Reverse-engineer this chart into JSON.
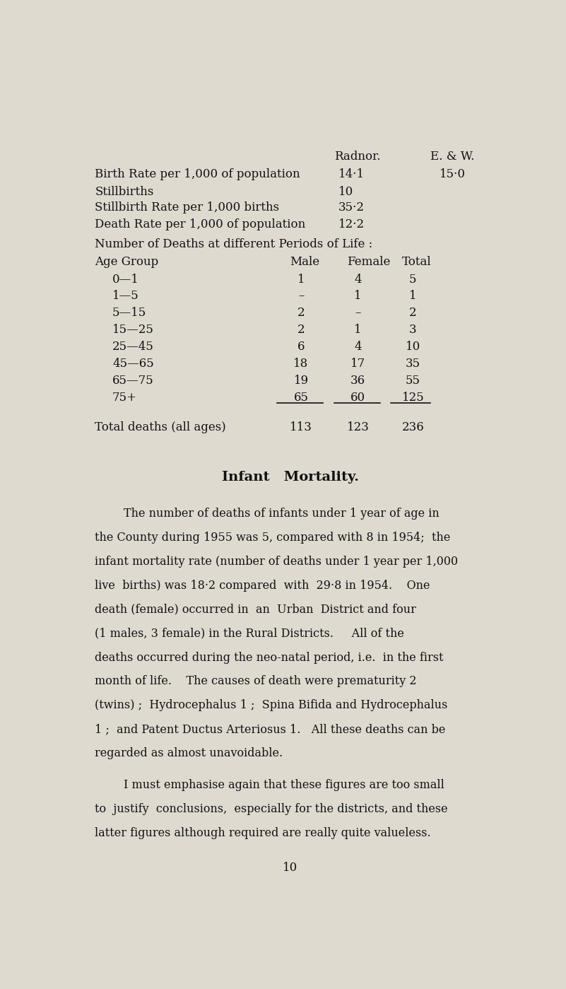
{
  "bg_color": "#dedad0",
  "text_color": "#111111",
  "page_width": 8.01,
  "page_height": 13.99,
  "header_col1": "Radnor.",
  "header_col2": "E. & W.",
  "stats": [
    {
      "label": "Birth Rate per 1,000 of population",
      "radnor": "14·1",
      "ew": "15·0"
    },
    {
      "label": "Stillbirths",
      "radnor": "10",
      "ew": ""
    },
    {
      "label": "Stillbirth Rate per 1,000 births",
      "radnor": "35·2",
      "ew": ""
    },
    {
      "label": "Death Rate per 1,000 of population",
      "radnor": "12·2",
      "ew": ""
    }
  ],
  "table_title": "Number of Deaths at different Periods of Life :",
  "table_headers": [
    "Age Group",
    "Male",
    "Female",
    "Total"
  ],
  "table_rows": [
    [
      "0—1",
      "1",
      "4",
      "5"
    ],
    [
      "1—5",
      "–",
      "1",
      "1"
    ],
    [
      "5—15",
      "2",
      "–",
      "2"
    ],
    [
      "15—25",
      "2",
      "1",
      "3"
    ],
    [
      "25—45",
      "6",
      "4",
      "10"
    ],
    [
      "45—65",
      "18",
      "17",
      "35"
    ],
    [
      "65—75",
      "19",
      "36",
      "55"
    ],
    [
      "75+",
      "65",
      "60",
      "125"
    ]
  ],
  "table_total": [
    "Total deaths (all ages)",
    "113",
    "123",
    "236"
  ],
  "section_title": "Infant   Mortality.",
  "para1_lines": [
    "        The number of deaths of infants under 1 year of age in",
    "the County during 1955 was 5, compared with 8 in 1954;  the",
    "infant mortality rate (number of deaths under 1 year per 1,000",
    "live  births) was 18·2 compared  with  29·8 in 1954.    One",
    "death (female) occurred in  an  Urban  District and four",
    "(1 males, 3 female) in the Rural Districts.     All of the",
    "deaths occurred during the neo-natal period, i.e.  in the first",
    "month of life.    The causes of death were prematurity 2",
    "(twins) ;  Hydrocephalus 1 ;  Spina Bifida and Hydrocephalus",
    "1 ;  and Patent Ductus Arteriosus 1.   All these deaths can be",
    "regarded as almost unavoidable."
  ],
  "para2_lines": [
    "        I must emphasise again that these figures are too small",
    "to  justify  conclusions,  especially for the districts, and these",
    "latter figures although required are really quite valueless."
  ],
  "page_number": "10"
}
